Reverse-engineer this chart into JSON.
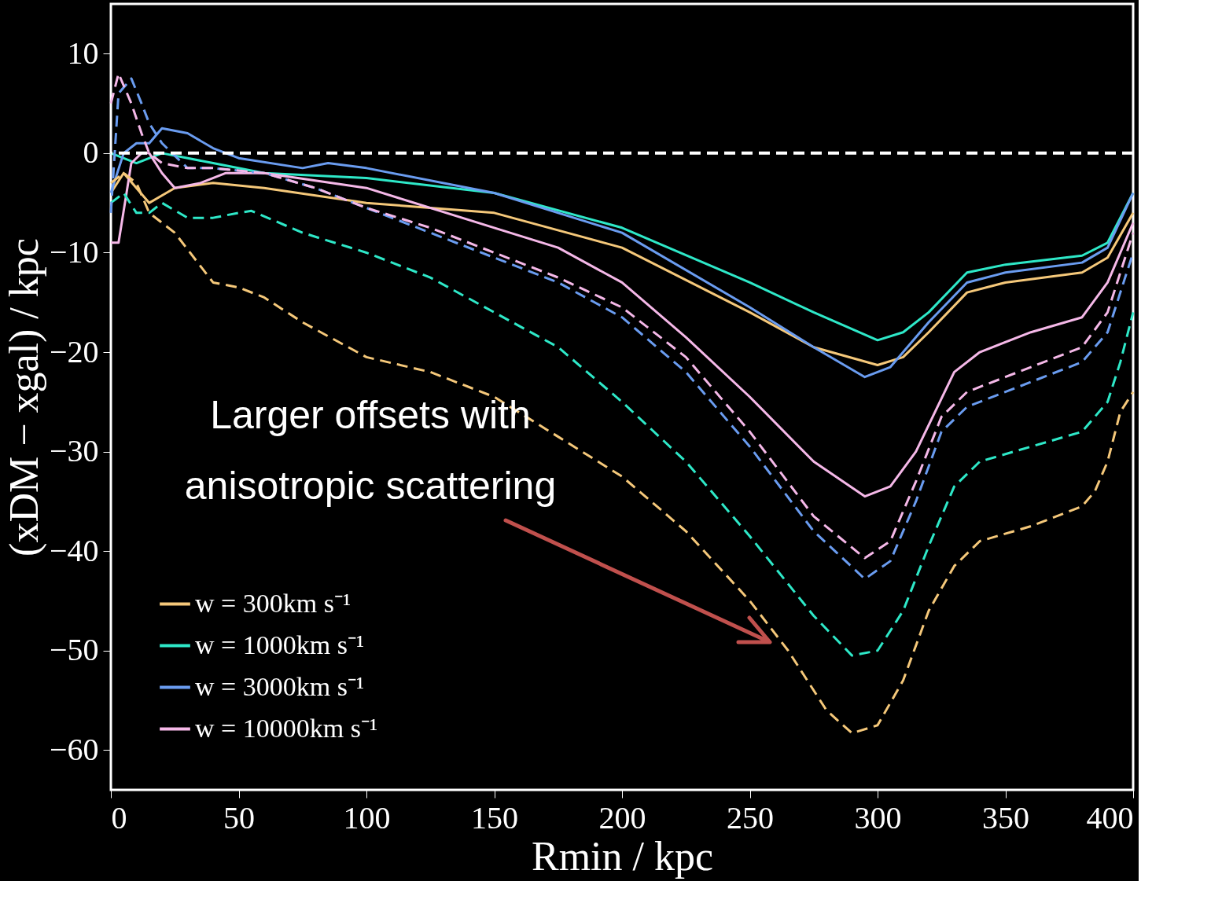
{
  "chart_data": {
    "type": "line",
    "xlabel": "Rmin / kpc",
    "ylabel": "(xDM − xgal) / kpc",
    "xlim": [
      0,
      400
    ],
    "ylim": [
      -64,
      15
    ],
    "xticks": [
      0,
      50,
      100,
      150,
      200,
      250,
      300,
      350,
      400
    ],
    "yticks": [
      -60,
      -50,
      -40,
      -30,
      -20,
      -10,
      0,
      10
    ],
    "grid": false,
    "legend": "bottom left",
    "marker": "none",
    "ref_lines": [
      {
        "axis": "y",
        "value": 0,
        "color": "#ffffff",
        "line_style": "dashed"
      }
    ],
    "annotations": [
      "Larger offsets with anisotropic scattering"
    ],
    "series": [
      {
        "name": "w = 300km s⁻¹",
        "color": "#f5c87a",
        "line_style": "solid",
        "x": [
          0,
          5,
          10,
          15,
          25,
          40,
          60,
          100,
          150,
          200,
          250,
          275,
          300,
          310,
          320,
          335,
          350,
          380,
          390,
          400
        ],
        "values": [
          -4,
          -2,
          -3.5,
          -5,
          -3.5,
          -3,
          -3.5,
          -5,
          -6,
          -9.5,
          -16,
          -19.5,
          -21.3,
          -20.5,
          -18,
          -14,
          -13,
          -12,
          -10.5,
          -6
        ]
      },
      {
        "name": "w = 1000km s⁻¹",
        "color": "#2ee8c8",
        "line_style": "solid",
        "x": [
          0,
          10,
          20,
          40,
          60,
          100,
          150,
          200,
          250,
          275,
          300,
          310,
          320,
          335,
          350,
          380,
          390,
          400
        ],
        "values": [
          0,
          -1,
          0,
          -1,
          -2,
          -2.5,
          -4,
          -7.5,
          -13,
          -16,
          -18.8,
          -18,
          -16,
          -12,
          -11.2,
          -10.3,
          -9,
          -4
        ]
      },
      {
        "name": "w = 3000km s⁻¹",
        "color": "#6a9cf0",
        "line_style": "solid",
        "x": [
          0,
          5,
          10,
          15,
          20,
          30,
          40,
          50,
          75,
          85,
          100,
          150,
          200,
          250,
          275,
          295,
          305,
          320,
          335,
          350,
          380,
          390,
          400
        ],
        "values": [
          -4,
          0,
          1,
          1,
          2.5,
          2,
          0.5,
          -0.5,
          -1.5,
          -1,
          -1.5,
          -4,
          -8,
          -15.5,
          -19.5,
          -22.5,
          -21.5,
          -17,
          -13,
          -12,
          -11,
          -9.5,
          -4
        ]
      },
      {
        "name": "w = 10000km s⁻¹",
        "color": "#f5b8e8",
        "line_style": "solid",
        "x": [
          0,
          3,
          8,
          12,
          15,
          20,
          25,
          35,
          45,
          60,
          100,
          150,
          175,
          200,
          225,
          250,
          275,
          295,
          305,
          315,
          330,
          340,
          360,
          380,
          390,
          400
        ],
        "values": [
          -9,
          -9,
          -1,
          0,
          0,
          -2,
          -3.5,
          -3,
          -2,
          -2,
          -3.5,
          -7.5,
          -9.5,
          -13,
          -18.5,
          -24.5,
          -31,
          -34.5,
          -33.5,
          -30,
          -22,
          -20,
          -18,
          -16.5,
          -13,
          -7
        ]
      },
      {
        "color": "#f5c87a",
        "line_style": "dashed",
        "x": [
          0,
          5,
          10,
          15,
          20,
          25,
          40,
          50,
          60,
          75,
          100,
          125,
          150,
          175,
          200,
          225,
          250,
          265,
          280,
          290,
          300,
          310,
          320,
          330,
          340,
          360,
          380,
          385,
          390,
          395,
          400
        ],
        "values": [
          -3,
          -2,
          -3,
          -6,
          -7,
          -8,
          -13,
          -13.5,
          -14.5,
          -17,
          -20.5,
          -22,
          -24.5,
          -28.5,
          -32.5,
          -38,
          -45,
          -50,
          -56,
          -58.3,
          -57.5,
          -53,
          -46,
          -41.5,
          -39,
          -37.5,
          -35.5,
          -34,
          -31,
          -26,
          -24
        ]
      },
      {
        "color": "#2ee8c8",
        "line_style": "dashed",
        "x": [
          0,
          5,
          10,
          15,
          20,
          30,
          40,
          50,
          55,
          75,
          100,
          125,
          150,
          175,
          200,
          225,
          250,
          275,
          290,
          300,
          310,
          320,
          330,
          340,
          360,
          380,
          390,
          395,
          400
        ],
        "values": [
          -5,
          -4,
          -6,
          -6,
          -5,
          -6.5,
          -6.5,
          -6,
          -5.8,
          -8,
          -10,
          -12.5,
          -16,
          -19.5,
          -25,
          -31,
          -38.5,
          -46.5,
          -50.5,
          -50,
          -46,
          -39.5,
          -33.5,
          -31,
          -29.5,
          -28,
          -25,
          -21,
          -16
        ]
      },
      {
        "color": "#6a9cf0",
        "line_style": "dashed",
        "x": [
          0,
          3,
          8,
          12,
          15,
          20,
          30,
          40,
          60,
          80,
          100,
          125,
          150,
          175,
          200,
          225,
          250,
          275,
          295,
          305,
          315,
          325,
          335,
          350,
          380,
          390,
          400
        ],
        "values": [
          -6,
          6,
          7.5,
          5,
          3,
          1,
          -1.5,
          -1.5,
          -2,
          -3.5,
          -5.5,
          -8,
          -10.5,
          -13,
          -16.5,
          -22,
          -29.5,
          -38,
          -42.8,
          -41,
          -35,
          -28,
          -25.5,
          -24,
          -21,
          -18,
          -10
        ]
      },
      {
        "color": "#f5b8e8",
        "line_style": "dashed",
        "x": [
          0,
          3,
          8,
          12,
          15,
          20,
          30,
          40,
          60,
          80,
          100,
          125,
          150,
          175,
          200,
          225,
          250,
          275,
          295,
          305,
          315,
          325,
          335,
          350,
          380,
          390,
          400
        ],
        "values": [
          5,
          8,
          5,
          2,
          0,
          -1,
          -1.5,
          -1.5,
          -2,
          -3.5,
          -5.5,
          -7.5,
          -10,
          -12.5,
          -15.5,
          -20.5,
          -28,
          -36.5,
          -40.7,
          -39,
          -33,
          -26.5,
          -24,
          -22.5,
          -19.5,
          -16,
          -8
        ]
      }
    ]
  }
}
